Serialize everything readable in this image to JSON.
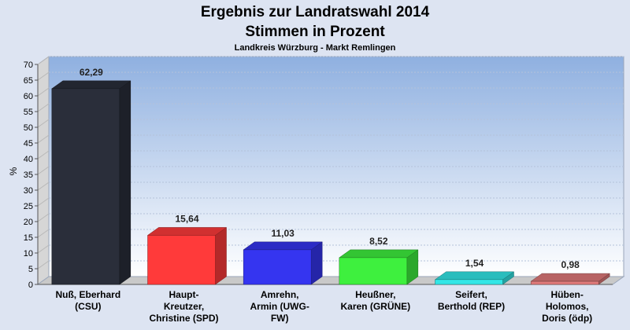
{
  "chart_data": {
    "type": "bar",
    "title_line1": "Ergebnis zur Landratswahl 2014",
    "title_line2": "Stimmen in Prozent",
    "subtitle": "Landkreis Würzburg - Markt Remlingen",
    "ylabel": "%",
    "ylim": [
      0,
      70
    ],
    "ytick_step": 5,
    "value_labels": [
      "62,29",
      "15,64",
      "11,03",
      "8,52",
      "1,54",
      "0,98"
    ],
    "values": [
      62.29,
      15.64,
      11.03,
      8.52,
      1.54,
      0.98
    ],
    "categories": [
      [
        "Nuß, Eberhard",
        "(CSU)"
      ],
      [
        "Haupt-",
        "Kreutzer,",
        "Christine (SPD)"
      ],
      [
        "Amrehn,",
        "Armin (UWG-",
        "FW)"
      ],
      [
        "Heußner,",
        "Karen (GRÜNE)"
      ],
      [
        "Seifert,",
        "Berthold (REP)"
      ],
      [
        "Hüben-",
        "Holomos,",
        "Doris (ödp)"
      ]
    ],
    "colors": [
      "#2a2e3a",
      "#ff3a3a",
      "#3535f0",
      "#3ef03e",
      "#33e6e6",
      "#e07a7a"
    ],
    "grid": true
  }
}
